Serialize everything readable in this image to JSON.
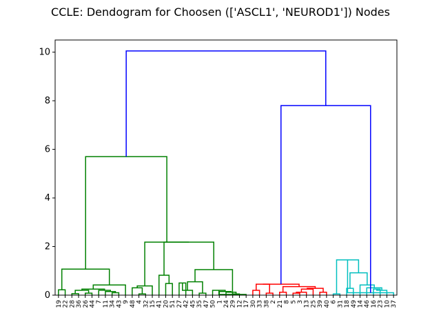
{
  "chart_data": {
    "type": "dendrogram",
    "title": "CCLE: Dendogram for Choosen (['ASCL1', 'NEUROD1']) Nodes",
    "xlabel": "",
    "ylabel": "",
    "ylim": [
      0,
      10.5
    ],
    "yticks": [
      0,
      2,
      4,
      6,
      8,
      10
    ],
    "grid": false,
    "leaves": [
      "19",
      "22",
      "28",
      "36",
      "26",
      "44",
      "7",
      "11",
      "34",
      "43",
      "9",
      "48",
      "4",
      "32",
      "15",
      "41",
      "20",
      "51",
      "27",
      "42",
      "45",
      "35",
      "47",
      "50",
      "1",
      "24",
      "29",
      "12",
      "17",
      "30",
      "33",
      "38",
      "2",
      "21",
      "8",
      "5",
      "3",
      "13",
      "25",
      "39",
      "40",
      "6",
      "31",
      "18",
      "49",
      "14",
      "46",
      "16",
      "23",
      "10",
      "37"
    ],
    "cluster_colors": {
      "green": "#008000",
      "red": "#ff0000",
      "cyan": "#00bfbf",
      "root": "#0000ff"
    },
    "top_merges": [
      {
        "height": 10.05,
        "between": [
          "green cluster",
          "red + cyan clusters"
        ],
        "color": "#0000ff"
      },
      {
        "height": 7.8,
        "between": [
          "red cluster",
          "cyan cluster"
        ],
        "color": "#0000ff"
      },
      {
        "height": 5.7,
        "between": [
          "leaves 19–9",
          "leaves 48–17"
        ],
        "color": "#008000"
      }
    ],
    "links": [
      {
        "a": 0,
        "b": 1,
        "h": 0.22,
        "c": "green"
      },
      {
        "a": 2,
        "b": 3,
        "h": 0.06,
        "c": "green"
      },
      {
        "a": 4,
        "b": 5,
        "h": 0.08,
        "c": "green"
      },
      {
        "a": "L2",
        "b": "L3",
        "h": 0.2,
        "c": "green"
      },
      {
        "a": 8,
        "b": 9,
        "h": 0.1,
        "c": "green"
      },
      {
        "a": 7,
        "b": "L5",
        "h": 0.15,
        "c": "green"
      },
      {
        "a": 6,
        "b": "L6",
        "h": 0.2,
        "c": "green"
      },
      {
        "a": "L4",
        "b": "L7",
        "h": 0.25,
        "c": "green"
      },
      {
        "a": "L8",
        "b": 10,
        "h": 0.42,
        "c": "green"
      },
      {
        "a": "L1",
        "b": "L9",
        "h": 1.07,
        "c": "green"
      },
      {
        "a": 12,
        "b": 13,
        "h": 0.05,
        "c": "green"
      },
      {
        "a": 11,
        "b": "L11",
        "h": 0.3,
        "c": "green"
      },
      {
        "a": "L12",
        "b": 14,
        "h": 0.38,
        "c": "green"
      },
      {
        "a": 16,
        "b": 17,
        "h": 0.48,
        "c": "green"
      },
      {
        "a": 15,
        "b": "L14",
        "h": 0.82,
        "c": "green"
      },
      {
        "a": 18,
        "b": 19,
        "h": 0.5,
        "c": "green"
      },
      {
        "a": "L16",
        "b": 20,
        "h": 0.2,
        "c": "green"
      },
      {
        "a": 21,
        "b": 22,
        "h": 0.08,
        "c": "green"
      },
      {
        "a": "L17",
        "b": "L18",
        "h": 0.55,
        "c": "green"
      },
      {
        "a": 26,
        "b": 27,
        "h": 0.05,
        "c": "green"
      },
      {
        "a": 25,
        "b": "L20",
        "h": 0.12,
        "c": "green"
      },
      {
        "a": 24,
        "b": "L21",
        "h": 0.15,
        "c": "green"
      },
      {
        "a": 23,
        "b": "L22",
        "h": 0.2,
        "c": "green"
      },
      {
        "a": "L23",
        "b": 28,
        "h": 0.03,
        "c": "green"
      },
      {
        "a": "L19",
        "b": "L24",
        "h": 1.05,
        "c": "green"
      },
      {
        "a": "L15",
        "b": "L25",
        "h": 2.18,
        "c": "green"
      },
      {
        "a": "L13",
        "b": "L26",
        "h": 2.18,
        "c": "green"
      },
      {
        "a": "L10",
        "b": "L27",
        "h": 5.7,
        "c": "green"
      },
      {
        "a": 29,
        "b": 30,
        "h": 0.2,
        "c": "red"
      },
      {
        "a": 31,
        "b": 32,
        "h": 0.08,
        "c": "red"
      },
      {
        "a": "L29",
        "b": "L30",
        "h": 0.45,
        "c": "red"
      },
      {
        "a": 33,
        "b": 34,
        "h": 0.12,
        "c": "red"
      },
      {
        "a": 35,
        "b": 36,
        "h": 0.08,
        "c": "red"
      },
      {
        "a": "L33",
        "b": 37,
        "h": 0.12,
        "c": "red"
      },
      {
        "a": "L34",
        "b": 38,
        "h": 0.25,
        "c": "red"
      },
      {
        "a": 39,
        "b": 40,
        "h": 0.12,
        "c": "red"
      },
      {
        "a": "L35",
        "b": "L36",
        "h": 0.28,
        "c": "red"
      },
      {
        "a": "L32",
        "b": "L37",
        "h": 0.35,
        "c": "red"
      },
      {
        "a": "L31",
        "b": "L38",
        "h": 0.45,
        "c": "red"
      },
      {
        "a": 41,
        "b": 42,
        "h": 0.05,
        "c": "cyan"
      },
      {
        "a": 43,
        "b": 44,
        "h": 0.28,
        "c": "cyan"
      },
      {
        "a": 47,
        "b": 48,
        "h": 0.25,
        "c": "cyan"
      },
      {
        "a": "L42",
        "b": 49,
        "h": 0.2,
        "c": "cyan"
      },
      {
        "a": 46,
        "b": "L43",
        "h": 0.3,
        "c": "cyan"
      },
      {
        "a": 45,
        "b": "L44",
        "h": 0.42,
        "c": "cyan"
      },
      {
        "a": "L41",
        "b": "L45",
        "h": 0.92,
        "c": "cyan"
      },
      {
        "a": "L40",
        "b": "L46",
        "h": 1.45,
        "c": "cyan"
      },
      {
        "a": "L47",
        "b": 50,
        "h": 0.1,
        "c": "cyan"
      },
      {
        "a": "L39",
        "b": "L48",
        "h": 7.8,
        "c": "root"
      },
      {
        "a": "L28",
        "b": "L49",
        "h": 10.05,
        "c": "root"
      }
    ]
  }
}
